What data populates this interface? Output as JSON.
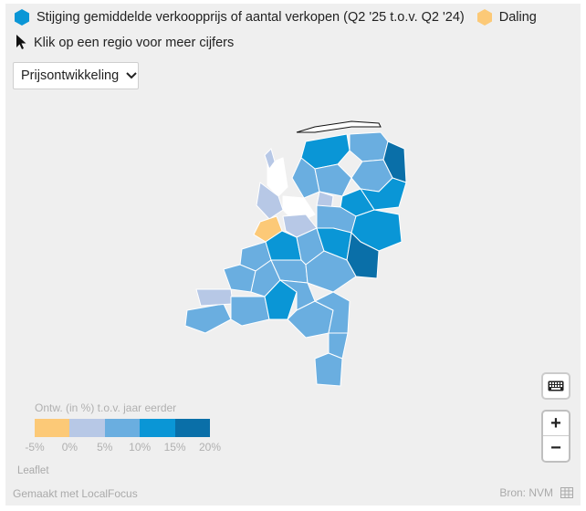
{
  "legend": {
    "rise_label": "Stijging gemiddelde verkoopprijs of aantal verkopen (Q2 '25 t.o.v. Q2 '24)",
    "fall_label": "Daling",
    "rise_color": "#0a96d6",
    "fall_color": "#fcc977"
  },
  "hint": "Klik op een regio voor meer cijfers",
  "dropdown": {
    "selected": "Prijsontwikkeling"
  },
  "scale": {
    "title": "Ontw. (in %) t.o.v. jaar eerder",
    "ticks": [
      "-5%",
      "0%",
      "5%",
      "10%",
      "15%",
      "20%"
    ],
    "colors": [
      "#fcc977",
      "#b7c8e6",
      "#6aaee0",
      "#0a96d6",
      "#0a6fa8"
    ]
  },
  "map_icons": {
    "keyboard": "keyboard-icon",
    "zoom_in": "+",
    "zoom_out": "−"
  },
  "attribution": "Leaflet",
  "footer": {
    "made_with": "Gemaakt met LocalFocus",
    "source": "Bron: NVM"
  }
}
